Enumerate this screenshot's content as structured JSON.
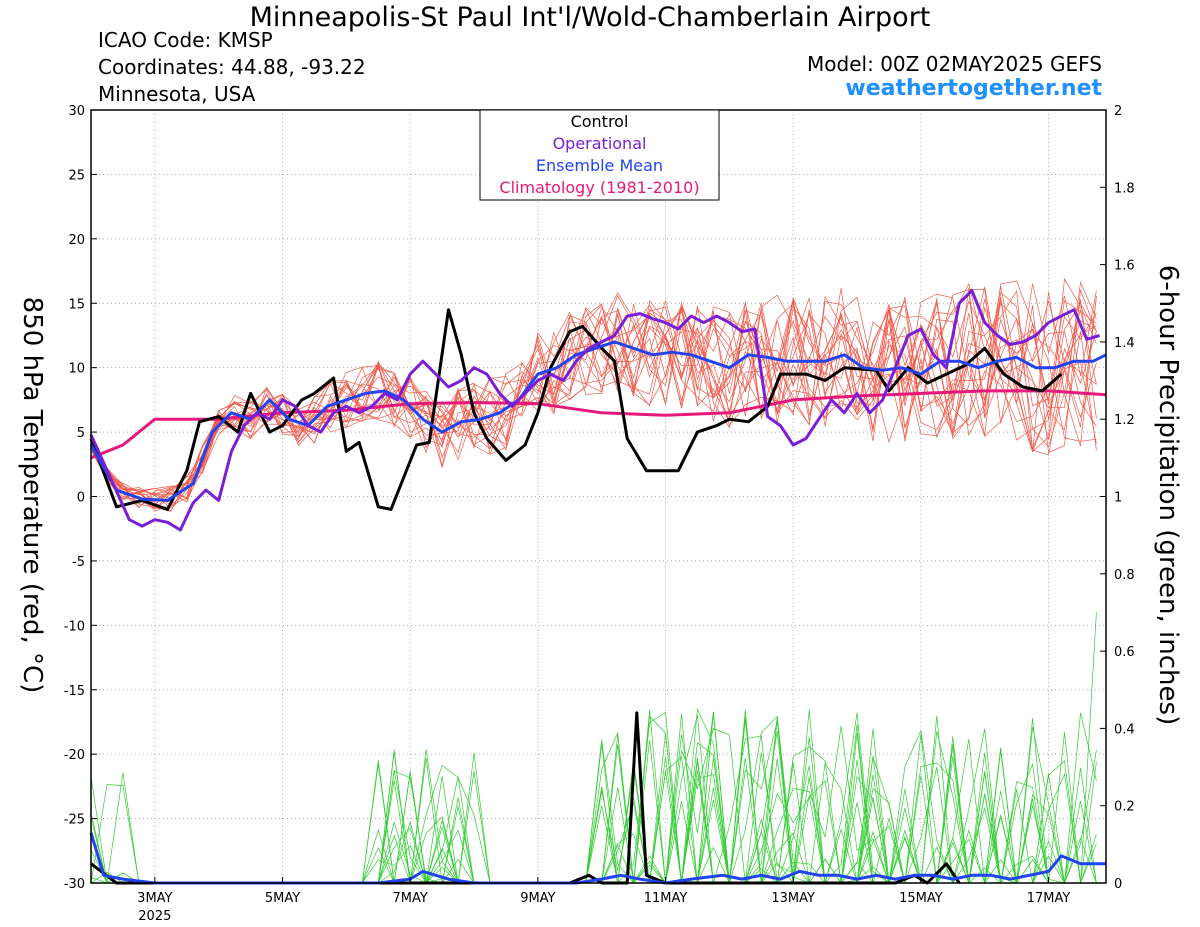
{
  "header": {
    "title": "Minneapolis-St Paul Int'l/Wold-Chamberlain Airport",
    "icao": "ICAO Code: KMSP",
    "coordinates": "Coordinates: 44.88, -93.22",
    "region": "Minnesota, USA",
    "model": "Model: 00Z 02MAY2025 GEFS",
    "site": "weathertogether.net"
  },
  "colors": {
    "members_temp": "#f05a4a",
    "members_precip": "#33cc33",
    "control": "#000000",
    "operational": "#7a1fd6",
    "ensemble_mean": "#2244ee",
    "climatology": "#e6197a",
    "site": "#1e90ff"
  },
  "chart_data": {
    "type": "line",
    "title": "Minneapolis-St Paul Int'l/Wold-Chamberlain Airport",
    "xlabel": "",
    "ylabel": "850 hPa Temperature (red, °C)",
    "y2label": "6-hour Precipitation (green, inches)",
    "x_unit": "day of May 2025 (00Z)",
    "xlim": [
      2.0,
      17.9
    ],
    "ylim": [
      -30,
      30
    ],
    "y2lim": [
      0,
      2
    ],
    "x_ticks": [
      {
        "x": 3,
        "label": "3MAY",
        "sub": "2025"
      },
      {
        "x": 5,
        "label": "5MAY",
        "sub": ""
      },
      {
        "x": 7,
        "label": "7MAY",
        "sub": ""
      },
      {
        "x": 9,
        "label": "9MAY",
        "sub": ""
      },
      {
        "x": 11,
        "label": "11MAY",
        "sub": ""
      },
      {
        "x": 13,
        "label": "13MAY",
        "sub": ""
      },
      {
        "x": 15,
        "label": "15MAY",
        "sub": ""
      },
      {
        "x": 17,
        "label": "17MAY",
        "sub": ""
      }
    ],
    "y_ticks": [
      30,
      25,
      20,
      15,
      10,
      5,
      0,
      -5,
      -10,
      -15,
      -20,
      -25,
      -30
    ],
    "y2_ticks": [
      {
        "v": 2,
        "label": "2"
      },
      {
        "v": 1.8,
        "label": "1.8"
      },
      {
        "v": 1.6,
        "label": "1.6"
      },
      {
        "v": 1.4,
        "label": "1.4"
      },
      {
        "v": 1.2,
        "label": "1.2"
      },
      {
        "v": 1.0,
        "label": "1"
      },
      {
        "v": 0.8,
        "label": "0.8"
      },
      {
        "v": 0.6,
        "label": "0.6"
      },
      {
        "v": 0.4,
        "label": "0.4"
      },
      {
        "v": 0.2,
        "label": "0.2"
      },
      {
        "v": 0,
        "label": "0"
      }
    ],
    "legend": {
      "placement": "top-center",
      "entries": [
        {
          "label": "Control",
          "color": "#000000"
        },
        {
          "label": "Operational",
          "color": "#7a1fd6"
        },
        {
          "label": "Ensemble Mean",
          "color": "#2244ee"
        },
        {
          "label": "Climatology (1981-2010)",
          "color": "#e6197a"
        }
      ]
    },
    "series": [
      {
        "name": "Control",
        "axis": "temp",
        "points": [
          [
            2.0,
            4.5
          ],
          [
            2.4,
            -0.8
          ],
          [
            2.8,
            -0.3
          ],
          [
            3.2,
            -1.0
          ],
          [
            3.5,
            2.0
          ],
          [
            3.7,
            5.8
          ],
          [
            4.0,
            6.2
          ],
          [
            4.3,
            5.0
          ],
          [
            4.5,
            8.0
          ],
          [
            4.8,
            5.0
          ],
          [
            5.0,
            5.5
          ],
          [
            5.3,
            7.5
          ],
          [
            5.5,
            8.0
          ],
          [
            5.8,
            9.2
          ],
          [
            6.0,
            3.5
          ],
          [
            6.2,
            4.2
          ],
          [
            6.5,
            -0.8
          ],
          [
            6.7,
            -1.0
          ],
          [
            7.1,
            4.0
          ],
          [
            7.3,
            4.2
          ],
          [
            7.6,
            14.5
          ],
          [
            7.8,
            11.0
          ],
          [
            8.0,
            6.5
          ],
          [
            8.2,
            4.5
          ],
          [
            8.5,
            2.8
          ],
          [
            8.8,
            4.0
          ],
          [
            9.0,
            6.5
          ],
          [
            9.2,
            10.0
          ],
          [
            9.5,
            12.8
          ],
          [
            9.7,
            13.2
          ],
          [
            10.0,
            11.5
          ],
          [
            10.2,
            10.5
          ],
          [
            10.4,
            4.5
          ],
          [
            10.7,
            2.0
          ],
          [
            11.2,
            2.0
          ],
          [
            11.5,
            5.0
          ],
          [
            11.8,
            5.5
          ],
          [
            12.0,
            6.0
          ],
          [
            12.3,
            5.8
          ],
          [
            12.6,
            7.0
          ],
          [
            12.8,
            9.5
          ],
          [
            13.2,
            9.5
          ],
          [
            13.5,
            9.0
          ],
          [
            13.8,
            10.0
          ],
          [
            14.3,
            9.8
          ],
          [
            14.5,
            8.2
          ],
          [
            14.8,
            10.0
          ],
          [
            15.1,
            8.8
          ],
          [
            15.4,
            9.5
          ],
          [
            15.7,
            10.2
          ],
          [
            16.0,
            11.5
          ],
          [
            16.3,
            9.5
          ],
          [
            16.6,
            8.5
          ],
          [
            16.9,
            8.2
          ],
          [
            17.2,
            9.5
          ]
        ],
        "color": "#000000"
      },
      {
        "name": "Operational",
        "axis": "temp",
        "points": [
          [
            2.0,
            4.8
          ],
          [
            2.3,
            1.5
          ],
          [
            2.6,
            -1.8
          ],
          [
            2.8,
            -2.3
          ],
          [
            3.0,
            -1.8
          ],
          [
            3.2,
            -2.0
          ],
          [
            3.4,
            -2.6
          ],
          [
            3.6,
            -0.5
          ],
          [
            3.8,
            0.5
          ],
          [
            4.0,
            -0.3
          ],
          [
            4.2,
            3.5
          ],
          [
            4.4,
            5.5
          ],
          [
            4.6,
            6.5
          ],
          [
            4.8,
            6.0
          ],
          [
            5.0,
            7.5
          ],
          [
            5.2,
            7.0
          ],
          [
            5.4,
            5.5
          ],
          [
            5.6,
            5.0
          ],
          [
            5.8,
            6.5
          ],
          [
            6.0,
            7.0
          ],
          [
            6.2,
            6.5
          ],
          [
            6.4,
            7.0
          ],
          [
            6.6,
            8.0
          ],
          [
            6.8,
            7.5
          ],
          [
            7.0,
            9.5
          ],
          [
            7.2,
            10.5
          ],
          [
            7.4,
            9.5
          ],
          [
            7.6,
            8.5
          ],
          [
            7.8,
            9.0
          ],
          [
            8.0,
            10.0
          ],
          [
            8.2,
            9.5
          ],
          [
            8.4,
            8.0
          ],
          [
            8.6,
            7.0
          ],
          [
            8.8,
            8.0
          ],
          [
            9.0,
            9.0
          ],
          [
            9.2,
            9.5
          ],
          [
            9.4,
            9.0
          ],
          [
            9.6,
            10.5
          ],
          [
            9.8,
            11.5
          ],
          [
            10.0,
            12.0
          ],
          [
            10.2,
            12.5
          ],
          [
            10.4,
            14.0
          ],
          [
            10.6,
            14.2
          ],
          [
            10.8,
            13.8
          ],
          [
            11.0,
            13.5
          ],
          [
            11.2,
            13.0
          ],
          [
            11.4,
            14.0
          ],
          [
            11.6,
            13.5
          ],
          [
            11.8,
            14.0
          ],
          [
            12.0,
            13.5
          ],
          [
            12.2,
            12.8
          ],
          [
            12.4,
            13.0
          ],
          [
            12.6,
            6.2
          ],
          [
            12.8,
            5.5
          ],
          [
            13.0,
            4.0
          ],
          [
            13.2,
            4.5
          ],
          [
            13.4,
            6.0
          ],
          [
            13.6,
            7.5
          ],
          [
            13.8,
            6.5
          ],
          [
            14.0,
            8.0
          ],
          [
            14.2,
            6.5
          ],
          [
            14.4,
            7.5
          ],
          [
            14.6,
            10.0
          ],
          [
            14.8,
            12.5
          ],
          [
            15.0,
            13.0
          ],
          [
            15.2,
            11.0
          ],
          [
            15.4,
            10.0
          ],
          [
            15.6,
            15.0
          ],
          [
            15.8,
            16.0
          ],
          [
            16.0,
            13.5
          ],
          [
            16.2,
            12.5
          ],
          [
            16.4,
            11.8
          ],
          [
            16.6,
            12.0
          ],
          [
            16.8,
            12.5
          ],
          [
            17.0,
            13.5
          ],
          [
            17.2,
            14.0
          ],
          [
            17.4,
            14.5
          ],
          [
            17.6,
            12.2
          ],
          [
            17.8,
            12.5
          ]
        ],
        "color": "#7a1fd6"
      },
      {
        "name": "Ensemble Mean",
        "axis": "temp",
        "points": [
          [
            2.0,
            4.0
          ],
          [
            2.4,
            0.5
          ],
          [
            2.8,
            -0.2
          ],
          [
            3.2,
            -0.3
          ],
          [
            3.6,
            1.0
          ],
          [
            3.9,
            5.0
          ],
          [
            4.2,
            6.5
          ],
          [
            4.5,
            6.0
          ],
          [
            4.8,
            7.5
          ],
          [
            5.1,
            6.0
          ],
          [
            5.4,
            5.5
          ],
          [
            5.7,
            7.0
          ],
          [
            6.0,
            7.5
          ],
          [
            6.3,
            8.0
          ],
          [
            6.6,
            8.2
          ],
          [
            6.9,
            7.5
          ],
          [
            7.2,
            6.0
          ],
          [
            7.5,
            5.0
          ],
          [
            7.8,
            5.8
          ],
          [
            8.1,
            6.0
          ],
          [
            8.4,
            6.5
          ],
          [
            8.7,
            7.5
          ],
          [
            9.0,
            9.5
          ],
          [
            9.3,
            10.0
          ],
          [
            9.6,
            11.0
          ],
          [
            9.9,
            11.5
          ],
          [
            10.2,
            12.0
          ],
          [
            10.5,
            11.5
          ],
          [
            10.8,
            11.0
          ],
          [
            11.1,
            11.2
          ],
          [
            11.4,
            11.0
          ],
          [
            11.7,
            10.5
          ],
          [
            12.0,
            10.0
          ],
          [
            12.3,
            11.0
          ],
          [
            12.6,
            10.8
          ],
          [
            12.9,
            10.5
          ],
          [
            13.2,
            10.5
          ],
          [
            13.5,
            10.5
          ],
          [
            13.8,
            11.0
          ],
          [
            14.1,
            10.0
          ],
          [
            14.4,
            9.8
          ],
          [
            14.7,
            10.0
          ],
          [
            15.0,
            9.5
          ],
          [
            15.3,
            10.5
          ],
          [
            15.6,
            10.5
          ],
          [
            15.9,
            10.0
          ],
          [
            16.2,
            10.5
          ],
          [
            16.5,
            10.8
          ],
          [
            16.8,
            10.0
          ],
          [
            17.1,
            10.0
          ],
          [
            17.4,
            10.5
          ],
          [
            17.7,
            10.5
          ],
          [
            17.9,
            11.0
          ]
        ],
        "color": "#2244ee"
      },
      {
        "name": "Climatology (1981-2010)",
        "axis": "temp",
        "points": [
          [
            2.0,
            3.0
          ],
          [
            2.5,
            4.0
          ],
          [
            3.0,
            6.0
          ],
          [
            4.0,
            6.0
          ],
          [
            5.0,
            6.5
          ],
          [
            6.0,
            6.7
          ],
          [
            7.0,
            7.2
          ],
          [
            8.0,
            7.3
          ],
          [
            9.0,
            7.2
          ],
          [
            10.0,
            6.5
          ],
          [
            11.0,
            6.3
          ],
          [
            12.0,
            6.5
          ],
          [
            12.5,
            7.0
          ],
          [
            13.0,
            7.5
          ],
          [
            14.0,
            7.8
          ],
          [
            15.0,
            8.0
          ],
          [
            16.0,
            8.2
          ],
          [
            17.0,
            8.2
          ],
          [
            17.9,
            7.9
          ]
        ],
        "color": "#e6197a"
      },
      {
        "name": "Control",
        "axis": "precip",
        "points": [
          [
            2.0,
            0.05
          ],
          [
            2.4,
            0.0
          ],
          [
            9.5,
            0.0
          ],
          [
            9.8,
            0.02
          ],
          [
            10.0,
            0.0
          ],
          [
            10.4,
            0.0
          ],
          [
            10.55,
            0.44
          ],
          [
            10.7,
            0.02
          ],
          [
            11.0,
            0.0
          ],
          [
            14.6,
            0.0
          ],
          [
            14.9,
            0.02
          ],
          [
            15.1,
            0.0
          ],
          [
            15.4,
            0.05
          ],
          [
            15.6,
            0.0
          ]
        ],
        "color": "#000000"
      },
      {
        "name": "Ensemble Mean",
        "axis": "precip",
        "points": [
          [
            2.0,
            0.13
          ],
          [
            2.2,
            0.02
          ],
          [
            2.5,
            0.01
          ],
          [
            3.0,
            0.0
          ],
          [
            6.5,
            0.0
          ],
          [
            7.0,
            0.01
          ],
          [
            7.2,
            0.03
          ],
          [
            7.6,
            0.01
          ],
          [
            8.0,
            0.0
          ],
          [
            9.0,
            0.0
          ],
          [
            9.6,
            0.0
          ],
          [
            10.0,
            0.01
          ],
          [
            10.3,
            0.02
          ],
          [
            10.6,
            0.01
          ],
          [
            11.0,
            0.0
          ],
          [
            11.4,
            0.01
          ],
          [
            11.9,
            0.02
          ],
          [
            12.2,
            0.01
          ],
          [
            12.5,
            0.02
          ],
          [
            12.8,
            0.01
          ],
          [
            13.1,
            0.03
          ],
          [
            13.4,
            0.02
          ],
          [
            13.7,
            0.02
          ],
          [
            14.0,
            0.01
          ],
          [
            14.3,
            0.02
          ],
          [
            14.6,
            0.01
          ],
          [
            14.9,
            0.02
          ],
          [
            15.2,
            0.02
          ],
          [
            15.5,
            0.01
          ],
          [
            15.8,
            0.02
          ],
          [
            16.1,
            0.02
          ],
          [
            16.4,
            0.01
          ],
          [
            16.7,
            0.02
          ],
          [
            17.0,
            0.03
          ],
          [
            17.2,
            0.07
          ],
          [
            17.5,
            0.05
          ],
          [
            17.9,
            0.05
          ]
        ],
        "color": "#2244ee"
      }
    ]
  }
}
